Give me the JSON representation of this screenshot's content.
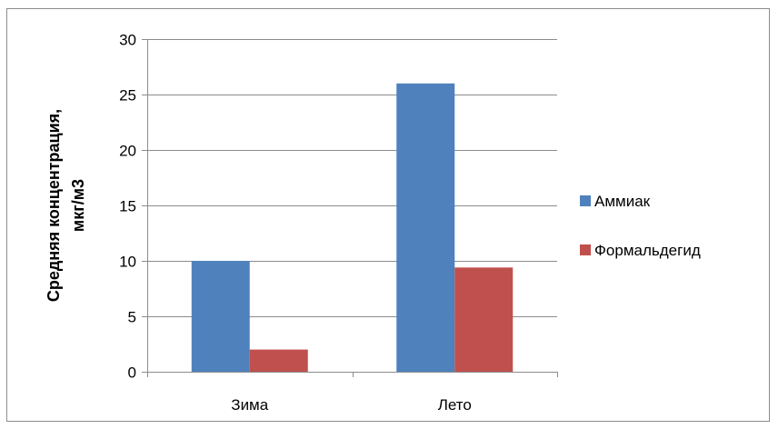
{
  "chart_data": {
    "type": "bar",
    "categories": [
      "Зима",
      "Лето"
    ],
    "series": [
      {
        "name": "Аммиак",
        "values": [
          10,
          26
        ],
        "color": "#4f81bd"
      },
      {
        "name": "Формальдегид",
        "values": [
          2,
          9.4
        ],
        "color": "#c0504d"
      }
    ],
    "title": "",
    "xlabel": "",
    "ylabel_lines": [
      "Средняя концентрация,",
      "мкг/м3"
    ],
    "ylim": [
      0,
      30
    ],
    "yticks": [
      0,
      5,
      10,
      15,
      20,
      25,
      30
    ],
    "grid": true,
    "legend_position": "right"
  }
}
